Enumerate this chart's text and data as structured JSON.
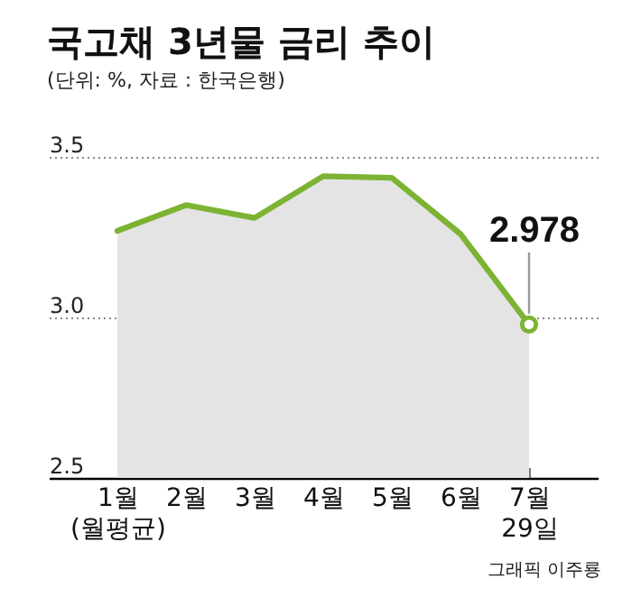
{
  "chart_data": {
    "type": "area",
    "title": "국고채 3년물 금리 추이",
    "subtitle": "(단위: %, 자료 : 한국은행)",
    "categories": [
      "1월\n(월평균)",
      "2월",
      "3월",
      "4월",
      "5월",
      "6월",
      "7월\n29일"
    ],
    "series": [
      {
        "color": "#7cb332",
        "values": [
          3.27,
          3.35,
          3.31,
          3.44,
          3.435,
          3.26,
          2.978
        ]
      },
      {
        "type": "scatter",
        "color": "#7cb332",
        "marker": "circle",
        "x": [
          "7월\n29일"
        ],
        "values": [
          2.978
        ],
        "value_labels": [
          "2.978"
        ]
      }
    ],
    "ylim": [
      2.5,
      3.5
    ],
    "yticks": [
      2.5,
      {
        "value": 3,
        "label": "3.0"
      },
      3.5
    ],
    "grid": "y",
    "line_style": "solid",
    "annotations": [
      "그래픽 이주룡"
    ]
  }
}
